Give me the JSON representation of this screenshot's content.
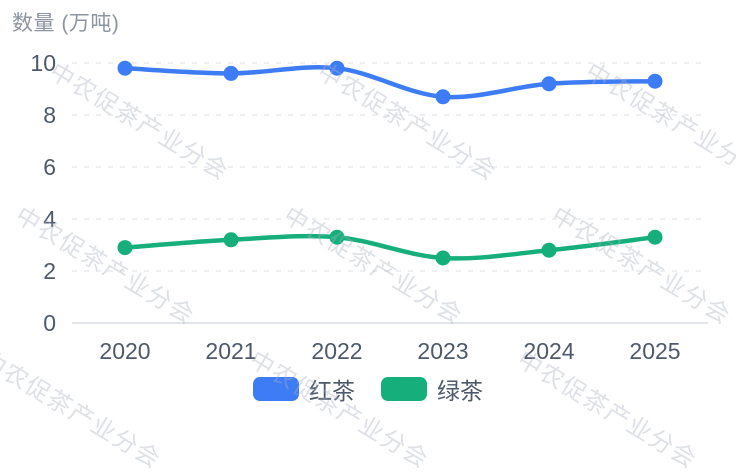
{
  "title": "数量 (万吨)",
  "watermark": {
    "text": "中农促茶产业分会"
  },
  "legend": {
    "items": [
      {
        "label": "红茶",
        "color": "#3e7cf6"
      },
      {
        "label": "绿茶",
        "color": "#16af7c"
      }
    ]
  },
  "chart_data": {
    "type": "line",
    "title": "数量 (万吨)",
    "ylabel": "数量 (万吨)",
    "xlabel": "",
    "x": [
      "2020",
      "2021",
      "2022",
      "2023",
      "2024",
      "2025"
    ],
    "series": [
      {
        "name": "红茶",
        "color": "#3e7cf6",
        "values": [
          9.8,
          9.6,
          9.8,
          8.7,
          9.2,
          9.3
        ]
      },
      {
        "name": "绿茶",
        "color": "#16af7c",
        "values": [
          2.9,
          3.2,
          3.3,
          2.5,
          2.8,
          3.3
        ]
      }
    ],
    "ylim": [
      0,
      10
    ],
    "yticks": [
      0,
      2,
      4,
      6,
      8,
      10
    ],
    "grid": true,
    "grid_style": "dashed",
    "smooth": true,
    "legend_position": "bottom"
  }
}
